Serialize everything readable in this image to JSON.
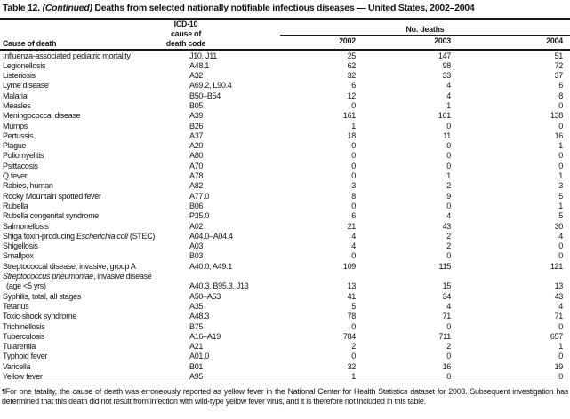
{
  "title": {
    "prefix": "Table 12. ",
    "continued": "(Continued)",
    "rest": " Deaths from selected nationally notifiable infectious diseases — United States, 2002–2004"
  },
  "table": {
    "cause_header": "Cause of death",
    "icd_header_lines": [
      "ICD-10",
      "cause of",
      "death code"
    ],
    "deaths_spanner": "No. deaths",
    "years": [
      "2002",
      "2003",
      "2004"
    ],
    "rows": [
      {
        "cause": "Influenza-associated pediatric mortality",
        "code": "J10, J11",
        "deaths": [
          25,
          147,
          51
        ]
      },
      {
        "cause": "Legionellosis",
        "code": "A48.1",
        "deaths": [
          62,
          98,
          72
        ]
      },
      {
        "cause": "Listeriosis",
        "code": "A32",
        "deaths": [
          32,
          33,
          37
        ]
      },
      {
        "cause": "Lyme disease",
        "code": "A69.2, L90.4",
        "deaths": [
          6,
          4,
          6
        ]
      },
      {
        "cause": "Malaria",
        "code": "B50–B54",
        "deaths": [
          12,
          4,
          8
        ]
      },
      {
        "cause": "Measles",
        "code": "B05",
        "deaths": [
          0,
          1,
          0
        ]
      },
      {
        "cause": "Meningococcal disease",
        "code": "A39",
        "deaths": [
          161,
          161,
          138
        ]
      },
      {
        "cause": "Mumps",
        "code": "B26",
        "deaths": [
          1,
          0,
          0
        ]
      },
      {
        "cause": "Pertussis",
        "code": "A37",
        "deaths": [
          18,
          11,
          16
        ]
      },
      {
        "cause": "Plague",
        "code": "A20",
        "deaths": [
          0,
          0,
          1
        ]
      },
      {
        "cause": "Poliomyelitis",
        "code": "A80",
        "deaths": [
          0,
          0,
          0
        ]
      },
      {
        "cause": "Psittacosis",
        "code": "A70",
        "deaths": [
          0,
          0,
          0
        ]
      },
      {
        "cause": "Q fever",
        "code": "A78",
        "deaths": [
          0,
          1,
          1
        ]
      },
      {
        "cause": "Rabies, human",
        "code": "A82",
        "deaths": [
          3,
          2,
          3
        ]
      },
      {
        "cause": "Rocky Mountain spotted fever",
        "code": "A77.0",
        "deaths": [
          8,
          9,
          5
        ]
      },
      {
        "cause": "Rubella",
        "code": "B06",
        "deaths": [
          0,
          0,
          1
        ]
      },
      {
        "cause": "Rubella congenital syndrome",
        "code": "P35.0",
        "deaths": [
          6,
          4,
          5
        ]
      },
      {
        "cause": "Salmonellosis",
        "code": "A02",
        "deaths": [
          21,
          43,
          30
        ]
      },
      {
        "cause": "Shiga toxin-producing Escherichia coli (STEC)",
        "italic": "Escherichia coli",
        "code": "A04.0–A04.4",
        "deaths": [
          4,
          2,
          4
        ]
      },
      {
        "cause": "Shigellosis",
        "code": "A03",
        "deaths": [
          4,
          2,
          0
        ]
      },
      {
        "cause": "Smallpox",
        "code": "B03",
        "deaths": [
          0,
          0,
          0
        ]
      },
      {
        "cause": "Streptococcal disease, invasive, group A",
        "code": "A40.0, A49.1",
        "deaths": [
          109,
          115,
          121
        ]
      },
      {
        "cause": "Streptococcus pneumoniae, invasive disease",
        "italic": "Streptococcus pneumoniae",
        "code": "",
        "deaths": [
          null,
          null,
          null
        ]
      },
      {
        "cause": "(age <5 yrs)",
        "indent": true,
        "code": "A40.3, B95.3, J13",
        "deaths": [
          13,
          15,
          13
        ]
      },
      {
        "cause": "Syphilis, total, all stages",
        "code": "A50–A53",
        "deaths": [
          41,
          34,
          43
        ]
      },
      {
        "cause": "Tetanus",
        "code": "A35",
        "deaths": [
          5,
          4,
          4
        ]
      },
      {
        "cause": "Toxic-shock syndrome",
        "code": "A48.3",
        "deaths": [
          78,
          71,
          71
        ]
      },
      {
        "cause": "Trichinellosis",
        "code": "B75",
        "deaths": [
          0,
          0,
          0
        ]
      },
      {
        "cause": "Tuberculosis",
        "code": "A16–A19",
        "deaths": [
          784,
          711,
          657
        ]
      },
      {
        "cause": "Tularemia",
        "code": "A21",
        "deaths": [
          2,
          2,
          1
        ]
      },
      {
        "cause": "Typhoid fever",
        "code": "A01.0",
        "deaths": [
          0,
          0,
          0
        ]
      },
      {
        "cause": "Varicella",
        "code": "B01",
        "deaths": [
          32,
          16,
          19
        ]
      },
      {
        "cause": "Yellow fever",
        "code": "A95",
        "deaths": [
          1,
          0,
          0
        ]
      }
    ]
  },
  "footnote": {
    "marker": "¶",
    "text": "For one fatality, the cause of death was erroneously reported as yellow fever in the National Center for Health Statistics dataset for 2003. Subsequent investigation has determined that this death did not result from infection with wild-type yellow fever virus, and it is therefore not included in this table."
  }
}
